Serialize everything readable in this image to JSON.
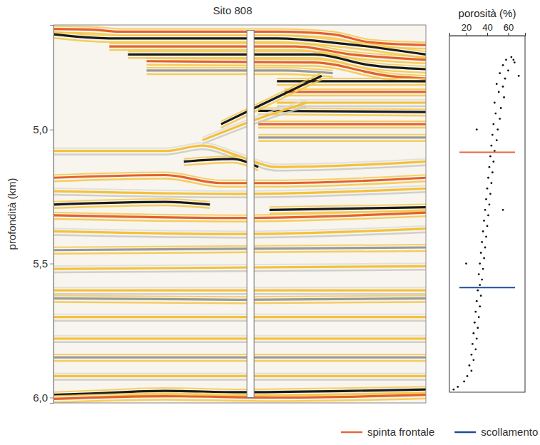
{
  "chart_data": [
    {
      "type": "seismic",
      "title": "Sito 808",
      "y_label": "profondità (km)",
      "ylim": [
        4.61,
        6.02
      ],
      "yticks": [
        {
          "value": 5,
          "label": "5,0"
        },
        {
          "value": 5.5,
          "label": "5,5"
        },
        {
          "value": 6,
          "label": "6,0"
        }
      ],
      "xlim": [
        0,
        1
      ],
      "tick_labels": "y",
      "borehole": {
        "x": 0.529,
        "top": 4.63,
        "bottom": 6.0
      },
      "reflectors": [
        {
          "color": "#e2622b",
          "points": [
            [
              0,
              4.625
            ],
            [
              0.1,
              4.627
            ],
            [
              0.18,
              4.635
            ],
            [
              0.3,
              4.635
            ],
            [
              0.6,
              4.635
            ],
            [
              0.75,
              4.645
            ],
            [
              0.85,
              4.675
            ],
            [
              1,
              4.685
            ]
          ]
        },
        {
          "color": "#1a1a1a",
          "points": [
            [
              0,
              4.645
            ],
            [
              0.15,
              4.66
            ],
            [
              0.6,
              4.66
            ],
            [
              0.78,
              4.68
            ],
            [
              1,
              4.72
            ]
          ]
        },
        {
          "color": "#e2622b",
          "points": [
            [
              0.15,
              4.69
            ],
            [
              0.65,
              4.69
            ],
            [
              0.8,
              4.72
            ],
            [
              1,
              4.74
            ]
          ]
        },
        {
          "color": "#1a1a1a",
          "points": [
            [
              0.2,
              4.72
            ],
            [
              0.7,
              4.72
            ],
            [
              0.85,
              4.76
            ],
            [
              1,
              4.775
            ]
          ]
        },
        {
          "color": "#e2622b",
          "points": [
            [
              0.25,
              4.745
            ],
            [
              0.7,
              4.75
            ],
            [
              0.9,
              4.8
            ],
            [
              1,
              4.81
            ]
          ]
        },
        {
          "color": "#9a9a9a",
          "points": [
            [
              0.25,
              4.78
            ],
            [
              0.62,
              4.78
            ],
            [
              0.75,
              4.79
            ]
          ]
        },
        {
          "color": "#1a1a1a",
          "points": [
            [
              0.6,
              4.82
            ],
            [
              1,
              4.82
            ]
          ]
        },
        {
          "color": "#e2622b",
          "points": [
            [
              0.62,
              4.86
            ],
            [
              1,
              4.86
            ]
          ]
        },
        {
          "color": "#f3c13a",
          "points": [
            [
              0.6,
              4.9
            ],
            [
              1,
              4.9
            ]
          ]
        },
        {
          "color": "#1a1a1a",
          "points": [
            [
              0.55,
              4.93
            ],
            [
              1,
              4.935
            ]
          ]
        },
        {
          "color": "#e2622b",
          "points": [
            [
              0.55,
              4.98
            ],
            [
              1,
              4.98
            ]
          ]
        },
        {
          "color": "#9a9a9a",
          "points": [
            [
              0.55,
              5.03
            ],
            [
              1,
              5.03
            ]
          ]
        },
        {
          "color": "#1a1a1a",
          "points": [
            [
              0.45,
              4.98
            ],
            [
              0.6,
              4.88
            ],
            [
              0.72,
              4.8
            ]
          ]
        },
        {
          "color": "#f3c13a",
          "points": [
            [
              0.4,
              5.04
            ],
            [
              0.55,
              4.96
            ],
            [
              0.68,
              4.9
            ]
          ]
        },
        {
          "color": "#f3c13a",
          "points": [
            [
              0,
              5.08
            ],
            [
              0.3,
              5.08
            ],
            [
              0.4,
              5.06
            ],
            [
              0.5,
              5.1
            ],
            [
              0.6,
              5.14
            ],
            [
              1,
              5.12
            ]
          ]
        },
        {
          "color": "#1a1a1a",
          "points": [
            [
              0.35,
              5.12
            ],
            [
              0.48,
              5.11
            ],
            [
              0.55,
              5.14
            ]
          ]
        },
        {
          "color": "#e2622b",
          "points": [
            [
              0,
              5.18
            ],
            [
              0.3,
              5.17
            ],
            [
              0.45,
              5.2
            ],
            [
              0.6,
              5.2
            ],
            [
              1,
              5.18
            ]
          ]
        },
        {
          "color": "#f3c13a",
          "points": [
            [
              0,
              5.23
            ],
            [
              0.5,
              5.24
            ],
            [
              1,
              5.22
            ]
          ]
        },
        {
          "color": "#1a1a1a",
          "points": [
            [
              0,
              5.28
            ],
            [
              0.3,
              5.27
            ],
            [
              0.42,
              5.28
            ]
          ]
        },
        {
          "color": "#1a1a1a",
          "points": [
            [
              0.58,
              5.3
            ],
            [
              1,
              5.29
            ]
          ]
        },
        {
          "color": "#e2622b",
          "points": [
            [
              0,
              5.32
            ],
            [
              0.5,
              5.33
            ],
            [
              1,
              5.31
            ]
          ]
        },
        {
          "color": "#f3c13a",
          "points": [
            [
              0,
              5.38
            ],
            [
              0.5,
              5.39
            ],
            [
              1,
              5.37
            ]
          ]
        },
        {
          "color": "#9a9a9a",
          "points": [
            [
              0,
              5.45
            ],
            [
              1,
              5.44
            ]
          ]
        },
        {
          "color": "#f3c13a",
          "points": [
            [
              0,
              5.52
            ],
            [
              1,
              5.51
            ]
          ]
        },
        {
          "color": "#f3c13a",
          "points": [
            [
              0,
              5.6
            ],
            [
              1,
              5.6
            ]
          ]
        },
        {
          "color": "#9a9a9a",
          "points": [
            [
              0,
              5.63
            ],
            [
              0.5,
              5.635
            ],
            [
              1,
              5.63
            ]
          ]
        },
        {
          "color": "#f3c13a",
          "points": [
            [
              0,
              5.7
            ],
            [
              1,
              5.7
            ]
          ]
        },
        {
          "color": "#f3c13a",
          "points": [
            [
              0,
              5.78
            ],
            [
              1,
              5.78
            ]
          ]
        },
        {
          "color": "#9a9a9a",
          "points": [
            [
              0,
              5.85
            ],
            [
              1,
              5.85
            ]
          ]
        },
        {
          "color": "#f3c13a",
          "points": [
            [
              0,
              5.92
            ],
            [
              1,
              5.92
            ]
          ]
        },
        {
          "color": "#1a1a1a",
          "points": [
            [
              0,
              5.99
            ],
            [
              0.1,
              5.985
            ],
            [
              0.3,
              5.975
            ],
            [
              0.5,
              5.98
            ],
            [
              0.8,
              5.975
            ],
            [
              1,
              5.97
            ]
          ]
        },
        {
          "color": "#e2622b",
          "points": [
            [
              0,
              6.005
            ],
            [
              0.3,
              5.995
            ],
            [
              0.6,
              6.0
            ],
            [
              1,
              5.99
            ]
          ]
        }
      ]
    },
    {
      "type": "scatter",
      "title": "porosità (%)",
      "xlim": [
        4,
        76
      ],
      "xticks": [
        20,
        40,
        60
      ],
      "ylim": [
        4.65,
        5.98
      ],
      "tick_labels": "x",
      "color": "#111111",
      "marker": "point",
      "legend": "bottom",
      "x": [
        63,
        58,
        66,
        55,
        60,
        52,
        57,
        49,
        55,
        51,
        56,
        47,
        53,
        48,
        52,
        46,
        50,
        45,
        49,
        44,
        47,
        43,
        46,
        42,
        45,
        41,
        44,
        40,
        43,
        39,
        42,
        38,
        41,
        37,
        40,
        36,
        39,
        35,
        38,
        34,
        37,
        33,
        36,
        32,
        35,
        33,
        31,
        34,
        30,
        33,
        29,
        32,
        28,
        31,
        27,
        30,
        26,
        29,
        25,
        27,
        23,
        25,
        21,
        18,
        12,
        8,
        70,
        30,
        55,
        20,
        65
      ],
      "y": [
        4.73,
        4.74,
        4.75,
        4.76,
        4.78,
        4.79,
        4.81,
        4.83,
        4.84,
        4.86,
        4.88,
        4.9,
        4.92,
        4.94,
        4.96,
        4.98,
        5.0,
        5.02,
        5.04,
        5.06,
        5.08,
        5.1,
        5.12,
        5.14,
        5.16,
        5.18,
        5.2,
        5.22,
        5.24,
        5.26,
        5.28,
        5.3,
        5.32,
        5.34,
        5.36,
        5.38,
        5.4,
        5.42,
        5.44,
        5.46,
        5.48,
        5.5,
        5.52,
        5.54,
        5.56,
        5.58,
        5.6,
        5.62,
        5.64,
        5.66,
        5.68,
        5.7,
        5.72,
        5.74,
        5.76,
        5.78,
        5.8,
        5.82,
        5.84,
        5.86,
        5.88,
        5.9,
        5.92,
        5.94,
        5.96,
        5.97,
        4.8,
        5.0,
        5.3,
        5.5,
        4.74
      ],
      "lines": [
        {
          "name": "spinta frontale",
          "color": "#e8643c",
          "value": 5.085
        },
        {
          "name": "scollamento",
          "color": "#1f4e9c",
          "value": 5.59
        }
      ]
    }
  ]
}
